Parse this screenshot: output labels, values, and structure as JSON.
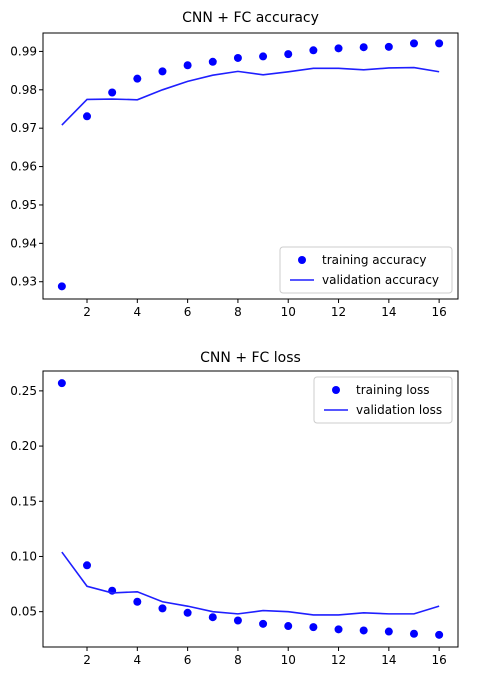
{
  "chart_data": [
    {
      "type": "line",
      "title": "CNN + FC accuracy",
      "xlabel": "",
      "ylabel": "",
      "xlim": [
        0.25,
        16.75
      ],
      "ylim": [
        0.9255,
        0.9948
      ],
      "xticks": [
        2,
        4,
        6,
        8,
        10,
        12,
        14,
        16
      ],
      "yticks": [
        0.93,
        0.94,
        0.95,
        0.96,
        0.97,
        0.98,
        0.99
      ],
      "grid": false,
      "legend": "lower-right",
      "x": [
        1,
        2,
        3,
        4,
        5,
        6,
        7,
        8,
        9,
        10,
        11,
        12,
        13,
        14,
        15,
        16
      ],
      "series": [
        {
          "name": "training accuracy",
          "style": "points",
          "color": "#0000ff",
          "values": [
            0.9288,
            0.9731,
            0.9793,
            0.9829,
            0.9848,
            0.9864,
            0.9873,
            0.9883,
            0.9887,
            0.9893,
            0.9903,
            0.9908,
            0.9911,
            0.9912,
            0.9921,
            0.9921
          ]
        },
        {
          "name": "validation accuracy",
          "style": "line",
          "color": "#1f1fff",
          "values": [
            0.9708,
            0.9775,
            0.9776,
            0.9774,
            0.98,
            0.9822,
            0.9838,
            0.9848,
            0.9839,
            0.9847,
            0.9856,
            0.9856,
            0.9852,
            0.9857,
            0.9858,
            0.9847
          ]
        }
      ]
    },
    {
      "type": "line",
      "title": "CNN + FC loss",
      "xlabel": "",
      "ylabel": "",
      "xlim": [
        0.25,
        16.75
      ],
      "ylim": [
        0.018,
        0.268
      ],
      "xticks": [
        2,
        4,
        6,
        8,
        10,
        12,
        14,
        16
      ],
      "yticks": [
        0.05,
        0.1,
        0.15,
        0.2,
        0.25
      ],
      "grid": false,
      "legend": "upper-right",
      "x": [
        1,
        2,
        3,
        4,
        5,
        6,
        7,
        8,
        9,
        10,
        11,
        12,
        13,
        14,
        15,
        16
      ],
      "series": [
        {
          "name": "training loss",
          "style": "points",
          "color": "#0000ff",
          "values": [
            0.257,
            0.092,
            0.069,
            0.059,
            0.053,
            0.049,
            0.045,
            0.042,
            0.039,
            0.037,
            0.036,
            0.034,
            0.033,
            0.032,
            0.03,
            0.029
          ]
        },
        {
          "name": "validation loss",
          "style": "line",
          "color": "#1f1fff",
          "values": [
            0.104,
            0.073,
            0.067,
            0.068,
            0.059,
            0.055,
            0.05,
            0.048,
            0.051,
            0.05,
            0.047,
            0.047,
            0.049,
            0.048,
            0.048,
            0.055
          ]
        }
      ]
    }
  ]
}
